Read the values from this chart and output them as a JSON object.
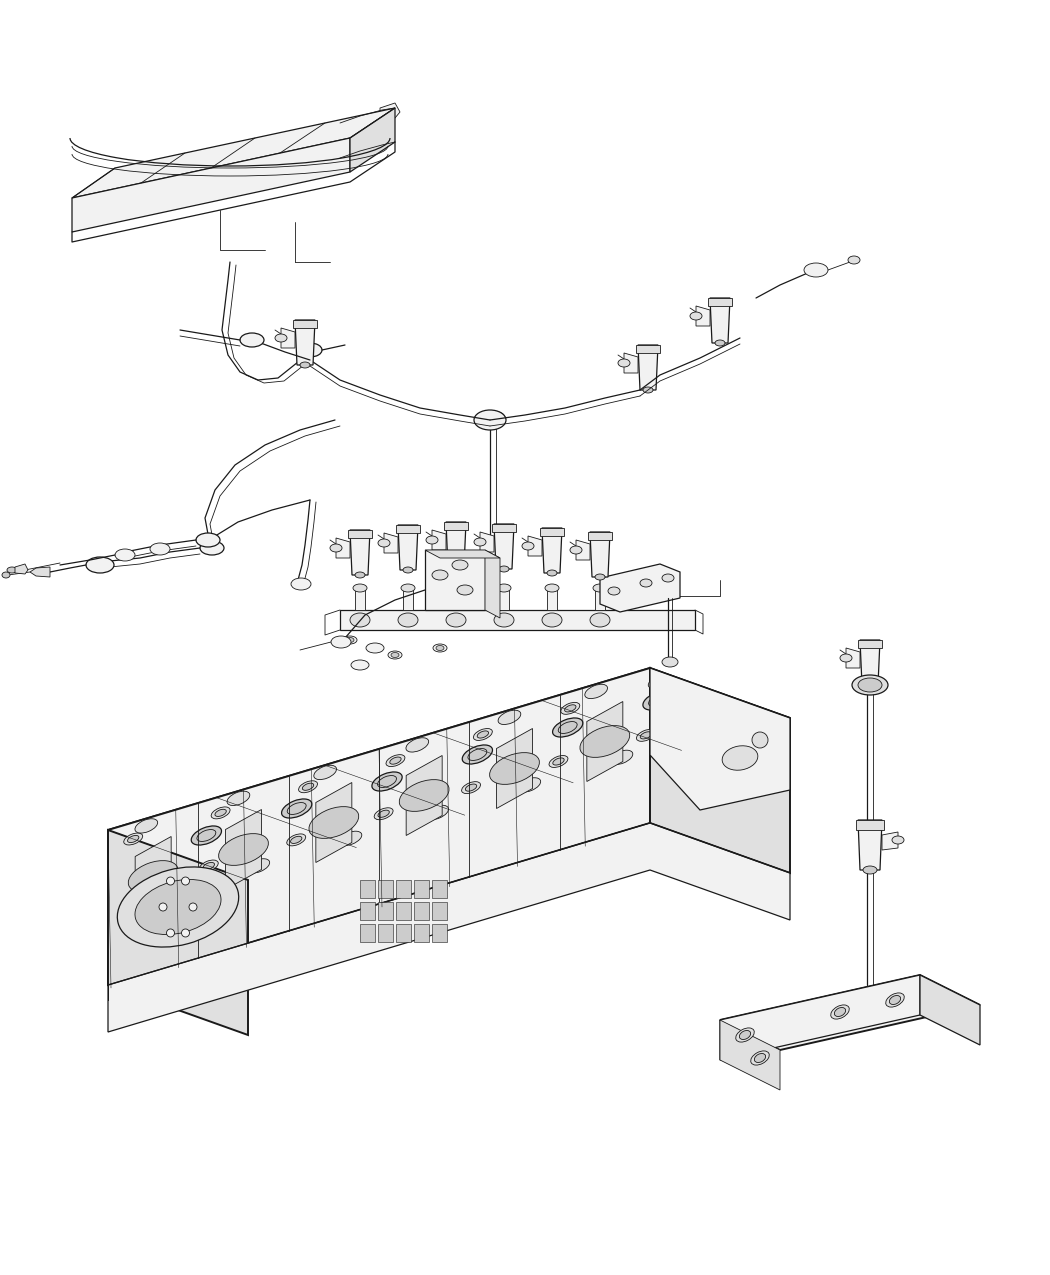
{
  "background_color": "#ffffff",
  "line_color": "#1a1a1a",
  "fig_width": 10.5,
  "fig_height": 12.75,
  "dpi": 100,
  "lw_thin": 0.6,
  "lw_med": 0.9,
  "lw_thick": 1.4,
  "face_light": "#ffffff",
  "face_mid": "#f2f2f2",
  "face_dark": "#e0e0e0",
  "face_darker": "#cccccc"
}
